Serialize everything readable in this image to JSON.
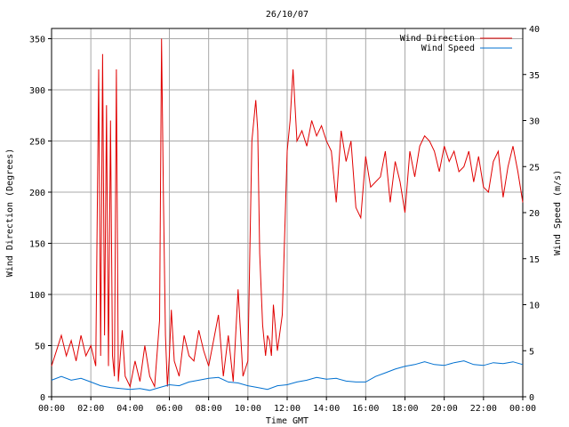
{
  "chart_data": {
    "type": "line",
    "title": "26/10/07",
    "xlabel": "Time GMT",
    "ylabel": "Wind Direction (Degrees)",
    "ylabel_right": "Wind Speed (m/s)",
    "xlim": [
      0,
      24
    ],
    "ylim": [
      0,
      360
    ],
    "ylim_right": [
      0,
      40
    ],
    "x_ticks": [
      "00:00",
      "02:00",
      "04:00",
      "06:00",
      "08:00",
      "10:00",
      "12:00",
      "14:00",
      "16:00",
      "18:00",
      "20:00",
      "22:00",
      "00:00"
    ],
    "y_ticks": [
      "0",
      "50",
      "100",
      "150",
      "200",
      "250",
      "300",
      "350"
    ],
    "y_ticks_right": [
      "0",
      "5",
      "10",
      "15",
      "20",
      "25",
      "30",
      "35",
      "40"
    ],
    "grid": true,
    "legend": "top-right",
    "series": [
      {
        "name": "Wind Direction",
        "axis": "left",
        "color": "#e00000",
        "x": [
          0,
          0.25,
          0.5,
          0.75,
          1,
          1.25,
          1.5,
          1.75,
          2,
          2.25,
          2.4,
          2.5,
          2.6,
          2.7,
          2.8,
          2.9,
          3,
          3.1,
          3.2,
          3.3,
          3.4,
          3.5,
          3.6,
          3.75,
          4,
          4.25,
          4.5,
          4.75,
          5,
          5.25,
          5.5,
          5.6,
          5.7,
          5.8,
          5.9,
          6,
          6.1,
          6.25,
          6.5,
          6.75,
          7,
          7.25,
          7.5,
          7.75,
          8,
          8.25,
          8.5,
          8.75,
          9,
          9.25,
          9.5,
          9.75,
          10,
          10.2,
          10.4,
          10.5,
          10.6,
          10.75,
          10.9,
          11,
          11.1,
          11.2,
          11.3,
          11.5,
          11.75,
          12,
          12.15,
          12.3,
          12.5,
          12.75,
          13,
          13.25,
          13.5,
          13.75,
          14,
          14.25,
          14.5,
          14.75,
          15,
          15.25,
          15.5,
          15.75,
          16,
          16.25,
          16.5,
          16.75,
          17,
          17.25,
          17.5,
          17.75,
          18,
          18.25,
          18.5,
          18.75,
          19,
          19.25,
          19.5,
          19.75,
          20,
          20.25,
          20.5,
          20.75,
          21,
          21.25,
          21.5,
          21.75,
          22,
          22.25,
          22.5,
          22.75,
          23,
          23.25,
          23.5,
          23.75,
          24
        ],
        "values": [
          30,
          45,
          60,
          40,
          55,
          35,
          60,
          40,
          50,
          30,
          320,
          40,
          335,
          60,
          285,
          30,
          270,
          40,
          20,
          320,
          15,
          40,
          65,
          20,
          10,
          35,
          15,
          50,
          20,
          10,
          75,
          350,
          190,
          60,
          10,
          40,
          85,
          35,
          20,
          60,
          40,
          35,
          65,
          45,
          30,
          55,
          80,
          20,
          60,
          15,
          105,
          20,
          35,
          250,
          290,
          260,
          140,
          70,
          40,
          60,
          55,
          40,
          90,
          45,
          80,
          240,
          270,
          320,
          250,
          260,
          245,
          270,
          255,
          265,
          250,
          240,
          190,
          260,
          230,
          250,
          185,
          175,
          235,
          205,
          210,
          215,
          240,
          190,
          230,
          210,
          180,
          240,
          215,
          245,
          255,
          250,
          240,
          220,
          245,
          230,
          240,
          220,
          225,
          240,
          210,
          235,
          205,
          200,
          230,
          240,
          195,
          225,
          245,
          220,
          190
        ]
      },
      {
        "name": "Wind Speed",
        "axis": "right",
        "color": "#0070d0",
        "x": [
          0,
          0.5,
          1,
          1.5,
          2,
          2.5,
          3,
          3.5,
          4,
          4.5,
          5,
          5.5,
          6,
          6.5,
          7,
          7.5,
          8,
          8.5,
          9,
          9.5,
          10,
          10.5,
          11,
          11.5,
          12,
          12.5,
          13,
          13.5,
          14,
          14.5,
          15,
          15.5,
          16,
          16.5,
          17,
          17.5,
          18,
          18.5,
          19,
          19.5,
          20,
          20.5,
          21,
          21.5,
          22,
          22.5,
          23,
          23.5,
          24
        ],
        "values": [
          1.8,
          2.2,
          1.8,
          2.0,
          1.6,
          1.2,
          1.0,
          0.9,
          0.8,
          0.9,
          0.7,
          1.0,
          1.3,
          1.2,
          1.6,
          1.8,
          2.0,
          2.1,
          1.6,
          1.5,
          1.2,
          1.0,
          0.8,
          1.2,
          1.3,
          1.6,
          1.8,
          2.1,
          1.9,
          2.0,
          1.7,
          1.6,
          1.6,
          2.2,
          2.6,
          3.0,
          3.3,
          3.5,
          3.8,
          3.5,
          3.4,
          3.7,
          3.9,
          3.5,
          3.4,
          3.7,
          3.6,
          3.8,
          3.5
        ]
      }
    ]
  }
}
